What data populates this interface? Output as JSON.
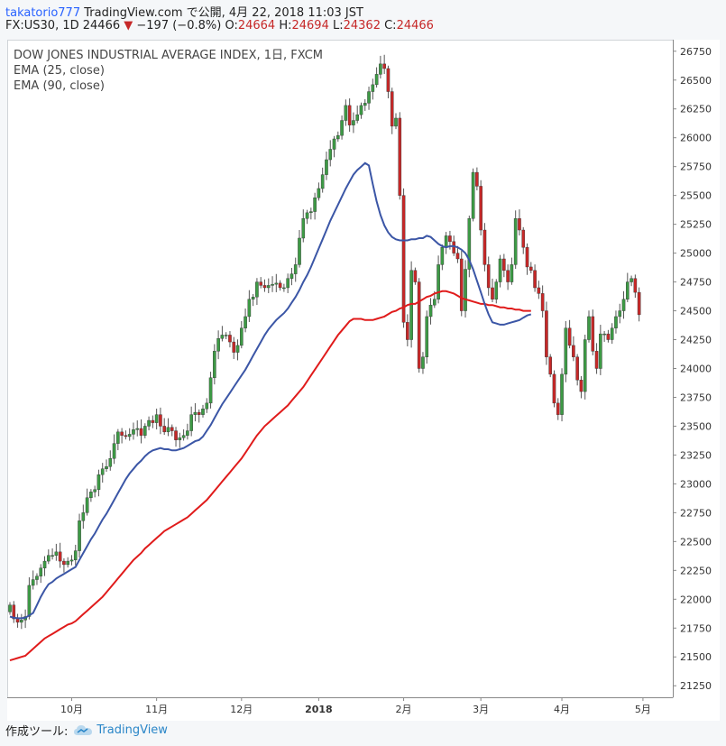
{
  "header": {
    "user": "takatorio777",
    "published": "TradingView.com で公開, 4月 22, 2018 11:03 JST",
    "symbol_line": "FX:US30, 1D 24466",
    "change": "−197 (−0.8%)",
    "o_label": "O:",
    "o_value": "24664",
    "h_label": "H:",
    "h_value": "24694",
    "l_label": "L:",
    "l_value": "24362",
    "c_label": "C:",
    "c_value": "24466"
  },
  "legend": {
    "title": "DOW JONES INDUSTRIAL AVERAGE INDEX, 1日, FXCM",
    "ema25": "EMA (25, close)",
    "ema90": "EMA (90, close)"
  },
  "footer": {
    "made_with": "作成ツール:",
    "brand": "TradingView"
  },
  "chart_data": {
    "type": "candlestick",
    "title": "DOW JONES INDUSTRIAL AVERAGE INDEX, 1日, FXCM",
    "ylim": [
      21150,
      26850
    ],
    "y_ticks": [
      21250,
      21500,
      21750,
      22000,
      22250,
      22500,
      22750,
      23000,
      23250,
      23500,
      23750,
      24000,
      24250,
      24500,
      24750,
      25000,
      25250,
      25500,
      25750,
      26000,
      26250,
      26500,
      26750
    ],
    "x_ticks": [
      {
        "label": "10月",
        "bar": 16
      },
      {
        "label": "11月",
        "bar": 38
      },
      {
        "label": "12月",
        "bar": 60
      },
      {
        "label": "2018",
        "bar": 80
      },
      {
        "label": "2月",
        "bar": 102
      },
      {
        "label": "3月",
        "bar": 122
      },
      {
        "label": "4月",
        "bar": 143
      },
      {
        "label": "5月",
        "bar": 164
      }
    ],
    "bar_count_axis": 175,
    "colors": {
      "up": "#3d9a45",
      "down": "#c62828",
      "ema25": "#3b56a6",
      "ema90": "#e01b1b"
    },
    "close": [
      21950,
      21830,
      21800,
      21820,
      21850,
      22120,
      22170,
      22200,
      22270,
      22330,
      22380,
      22380,
      22410,
      22330,
      22300,
      22330,
      22340,
      22420,
      22680,
      22750,
      22880,
      22930,
      22950,
      23080,
      23130,
      23150,
      23220,
      23350,
      23450,
      23420,
      23410,
      23430,
      23470,
      23480,
      23420,
      23500,
      23550,
      23530,
      23600,
      23500,
      23450,
      23490,
      23460,
      23380,
      23400,
      23420,
      23460,
      23600,
      23620,
      23600,
      23650,
      23700,
      23920,
      24150,
      24260,
      24290,
      24290,
      24230,
      24140,
      24200,
      24350,
      24450,
      24600,
      24620,
      24750,
      24720,
      24700,
      24720,
      24730,
      24740,
      24700,
      24700,
      24780,
      24820,
      24900,
      25130,
      25300,
      25350,
      25360,
      25480,
      25560,
      25680,
      25810,
      25900,
      25990,
      26020,
      26150,
      26280,
      26110,
      26150,
      26200,
      26280,
      26300,
      26400,
      26460,
      26550,
      26640,
      26600,
      26400,
      26100,
      26170,
      25500,
      24400,
      24250,
      24850,
      24750,
      24000,
      24100,
      24450,
      24550,
      24600,
      24900,
      25050,
      25150,
      25100,
      25000,
      24950,
      24500,
      24860,
      25300,
      25700,
      25580,
      25200,
      24900,
      24700,
      24600,
      24750,
      24950,
      24850,
      24750,
      24900,
      25300,
      25200,
      25050,
      24880,
      24850,
      24700,
      24650,
      24500,
      24100,
      23950,
      23700,
      23600,
      23950,
      24350,
      24200,
      24100,
      23900,
      23800,
      24250,
      24450,
      24150,
      24000,
      24300,
      24300,
      24250,
      24350,
      24450,
      24500,
      24600,
      24750,
      24780,
      24660,
      24466
    ],
    "ema25": [
      21850,
      21840,
      21835,
      21835,
      21840,
      21860,
      21880,
      21950,
      22020,
      22080,
      22130,
      22150,
      22180,
      22200,
      22220,
      22240,
      22260,
      22280,
      22340,
      22400,
      22460,
      22520,
      22570,
      22630,
      22690,
      22740,
      22800,
      22860,
      22920,
      22980,
      23040,
      23090,
      23130,
      23170,
      23200,
      23240,
      23270,
      23290,
      23300,
      23310,
      23300,
      23300,
      23290,
      23290,
      23300,
      23310,
      23330,
      23350,
      23370,
      23380,
      23410,
      23460,
      23510,
      23570,
      23630,
      23690,
      23740,
      23790,
      23840,
      23890,
      23940,
      23990,
      24050,
      24110,
      24170,
      24230,
      24290,
      24340,
      24380,
      24420,
      24450,
      24480,
      24520,
      24570,
      24620,
      24680,
      24750,
      24810,
      24880,
      24960,
      25040,
      25120,
      25200,
      25280,
      25350,
      25420,
      25490,
      25560,
      25620,
      25680,
      25720,
      25750,
      25780,
      25760,
      25600,
      25450,
      25330,
      25240,
      25180,
      25140,
      25120,
      25110,
      25110,
      25110,
      25120,
      25120,
      25130,
      25130,
      25150,
      25140,
      25110,
      25080,
      25060,
      25050,
      25060,
      25060,
      25050,
      25030,
      25000,
      24940,
      24860,
      24760,
      24660,
      24560,
      24470,
      24400,
      24390,
      24380,
      24380,
      24390,
      24400,
      24410,
      24420,
      24440,
      24460,
      24470
    ],
    "ema90": [
      21470,
      21480,
      21490,
      21500,
      21510,
      21540,
      21570,
      21600,
      21630,
      21660,
      21680,
      21700,
      21720,
      21740,
      21760,
      21780,
      21790,
      21810,
      21840,
      21870,
      21900,
      21930,
      21960,
      21990,
      22020,
      22060,
      22100,
      22140,
      22180,
      22220,
      22260,
      22300,
      22340,
      22370,
      22400,
      22440,
      22470,
      22500,
      22530,
      22560,
      22590,
      22610,
      22630,
      22650,
      22670,
      22690,
      22710,
      22740,
      22770,
      22800,
      22830,
      22860,
      22900,
      22940,
      22980,
      23020,
      23060,
      23100,
      23140,
      23180,
      23220,
      23270,
      23320,
      23370,
      23420,
      23460,
      23500,
      23530,
      23560,
      23590,
      23620,
      23650,
      23680,
      23720,
      23760,
      23800,
      23840,
      23890,
      23940,
      23990,
      24040,
      24090,
      24140,
      24190,
      24240,
      24290,
      24330,
      24370,
      24410,
      24430,
      24430,
      24430,
      24420,
      24420,
      24420,
      24430,
      24440,
      24450,
      24470,
      24490,
      24500,
      24520,
      24530,
      24550,
      24560,
      24560,
      24580,
      24600,
      24620,
      24630,
      24650,
      24660,
      24670,
      24670,
      24660,
      24650,
      24630,
      24610,
      24600,
      24590,
      24580,
      24570,
      24560,
      24560,
      24550,
      24550,
      24540,
      24530,
      24530,
      24520,
      24520,
      24510,
      24510,
      24500,
      24500,
      24500
    ],
    "ema25_start_bar": 0,
    "ema90_start_bar": 0
  }
}
